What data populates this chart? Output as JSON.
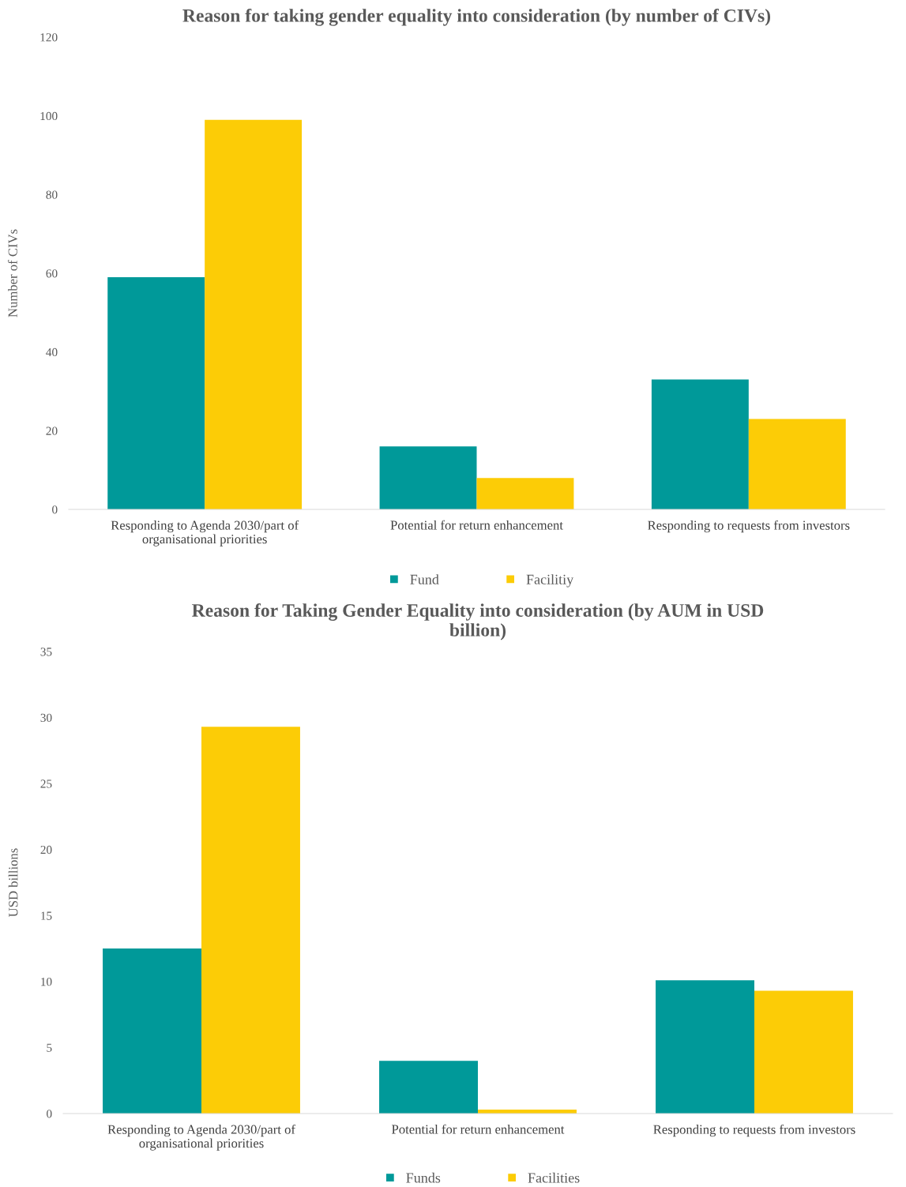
{
  "chart_data": [
    {
      "type": "bar",
      "title": "Reason for taking gender equality into consideration (by number of CIVs)",
      "ylabel": "Number of CIVs",
      "categories": [
        "Responding to Agenda 2030/part of\norganisational priorities",
        "Potential for return enhancement",
        "Responding to requests from investors"
      ],
      "series": [
        {
          "name": "Fund",
          "color": "#009999",
          "values": [
            59,
            16,
            33
          ]
        },
        {
          "name": "Facilitiy",
          "color": "#fccc06",
          "values": [
            99,
            8,
            23
          ]
        }
      ],
      "ylim": [
        0,
        120
      ],
      "yticks": [
        0,
        20,
        40,
        60,
        80,
        100,
        120
      ],
      "grid": false,
      "legend": "bottom"
    },
    {
      "type": "bar",
      "title": "Reason for Taking Gender Equality into consideration (by AUM in USD\nbillion)",
      "ylabel": "USD billions",
      "categories": [
        "Responding to Agenda 2030/part of\norganisational priorities",
        "Potential for return enhancement",
        "Responding to requests from investors"
      ],
      "series": [
        {
          "name": "Funds",
          "color": "#009999",
          "values": [
            12.5,
            4.0,
            10.1
          ]
        },
        {
          "name": "Facilities",
          "color": "#fccc06",
          "values": [
            29.3,
            0.3,
            9.3
          ]
        }
      ],
      "ylim": [
        0,
        35
      ],
      "yticks": [
        0,
        5,
        10,
        15,
        20,
        25,
        30,
        35
      ],
      "grid": false,
      "legend": "bottom"
    }
  ]
}
